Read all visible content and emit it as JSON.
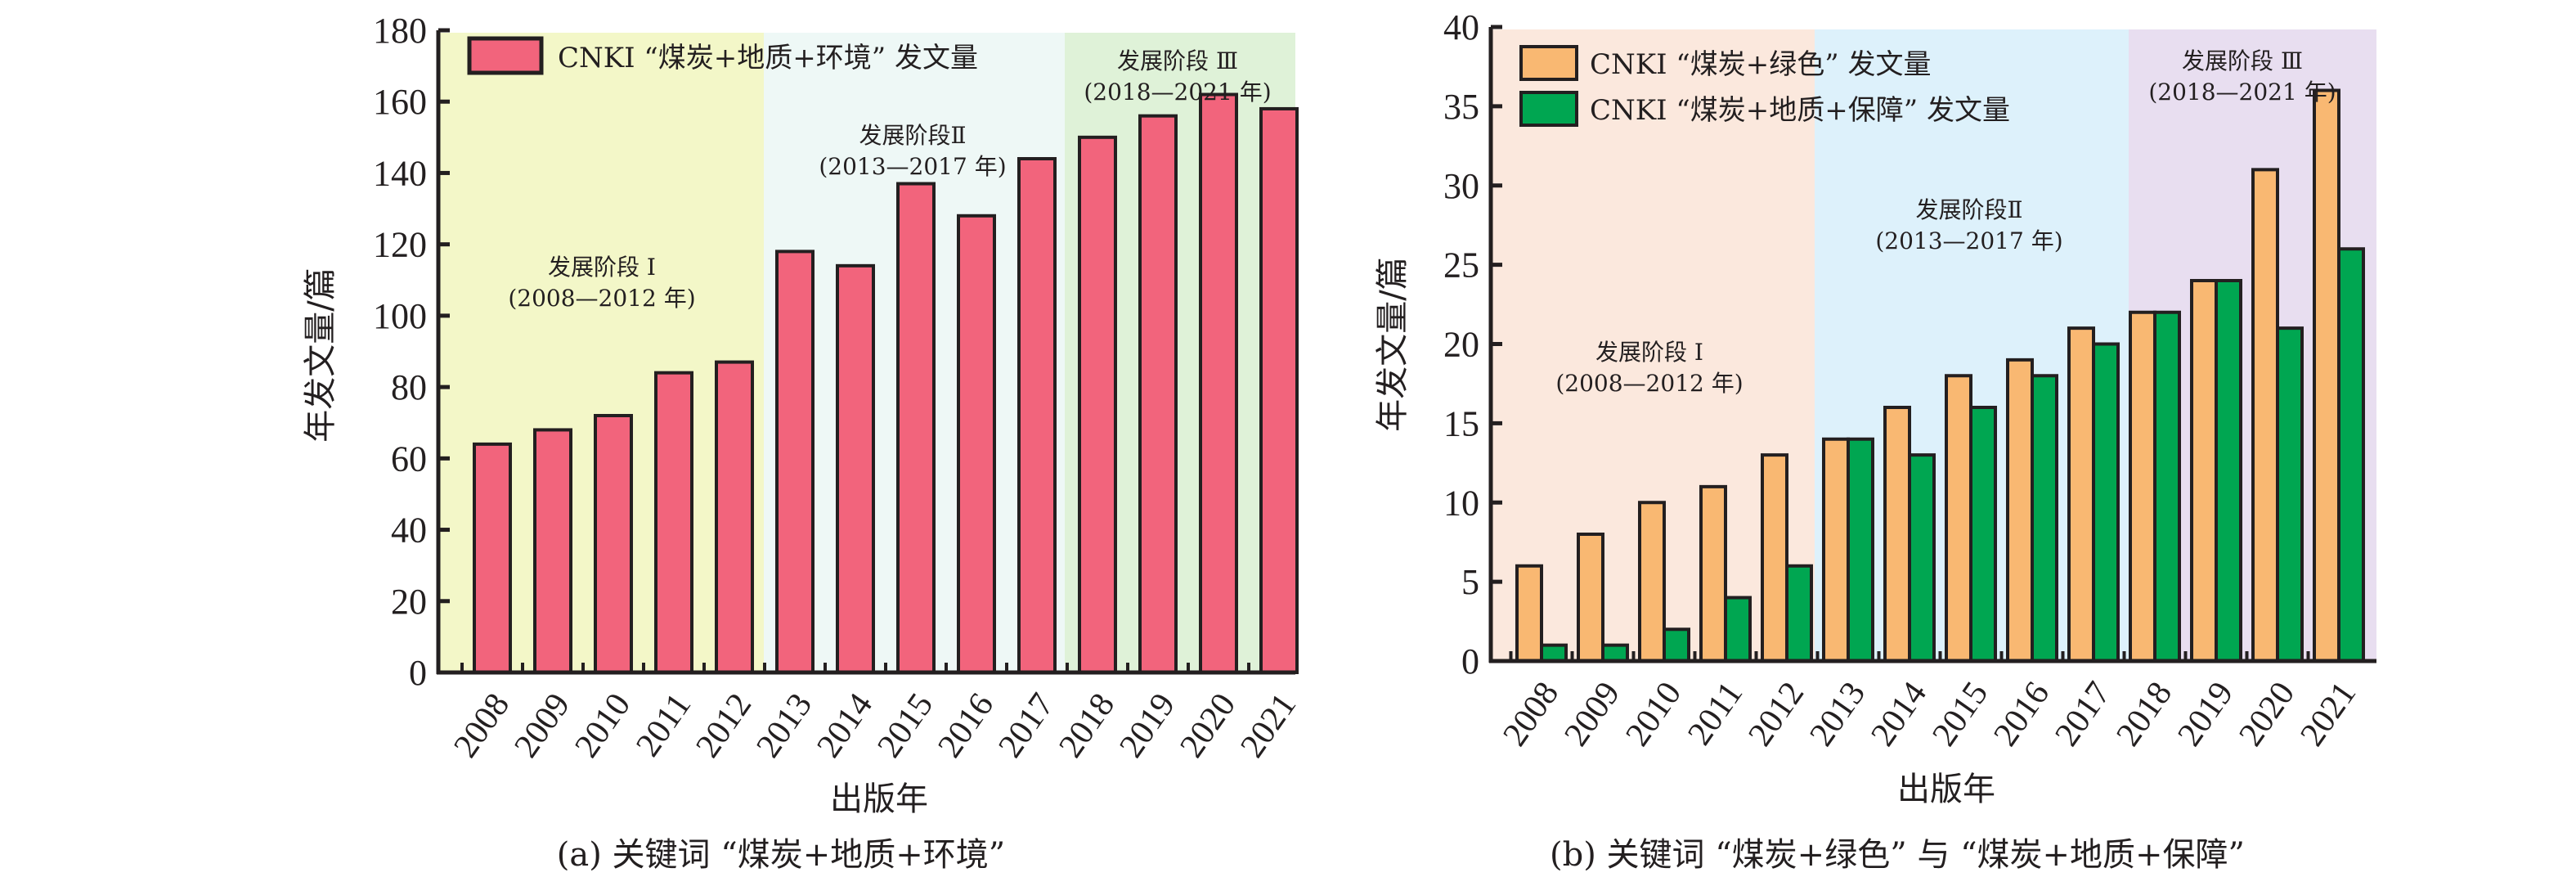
{
  "chart_data": [
    {
      "type": "bar",
      "title": "",
      "caption": "(a) 关键词 “煤炭+地质+环境”",
      "xlabel": "出版年",
      "ylabel": "年发文量/篇",
      "ylim": [
        0,
        180
      ],
      "yticks": [
        0,
        20,
        40,
        60,
        80,
        100,
        120,
        140,
        160,
        180
      ],
      "categories": [
        "2008",
        "2009",
        "2010",
        "2011",
        "2012",
        "2013",
        "2014",
        "2015",
        "2016",
        "2017",
        "2018",
        "2019",
        "2020",
        "2021"
      ],
      "series": [
        {
          "name": "CNKI “煤炭+地质+环境” 发文量",
          "color": "#f2647c",
          "values": [
            64,
            68,
            72,
            84,
            87,
            118,
            114,
            137,
            128,
            144,
            150,
            156,
            162,
            158
          ]
        }
      ],
      "legend_position": "top-left",
      "stages": [
        {
          "name": "发展阶段 Ⅰ",
          "range": "(2008—2012 年)",
          "from": "2008",
          "to": "2012",
          "color": "#f3f7c8"
        },
        {
          "name": "发展阶段Ⅱ",
          "range": "(2013—2017 年)",
          "from": "2013",
          "to": "2017",
          "color": "#eef8f6"
        },
        {
          "name": "发展阶段 Ⅲ",
          "range": "(2018—2021 年)",
          "from": "2018",
          "to": "2021",
          "color": "#dff2d8"
        }
      ],
      "grid": false
    },
    {
      "type": "bar",
      "title": "",
      "caption": "(b) 关键词 “煤炭+绿色” 与 “煤炭+地质+保障”",
      "xlabel": "出版年",
      "ylabel": "年发文量/篇",
      "ylim": [
        0,
        40
      ],
      "yticks": [
        0,
        5,
        10,
        15,
        20,
        25,
        30,
        35,
        40
      ],
      "categories": [
        "2008",
        "2009",
        "2010",
        "2011",
        "2012",
        "2013",
        "2014",
        "2015",
        "2016",
        "2017",
        "2018",
        "2019",
        "2020",
        "2021"
      ],
      "series": [
        {
          "name": "CNKI “煤炭+绿色” 发文量",
          "color": "#f9b872",
          "values": [
            6,
            8,
            10,
            11,
            13,
            14,
            16,
            18,
            19,
            21,
            22,
            24,
            31,
            36
          ]
        },
        {
          "name": "CNKI “煤炭+地质+保障” 发文量",
          "color": "#00a651",
          "values": [
            1,
            1,
            2,
            4,
            6,
            14,
            13,
            16,
            18,
            20,
            22,
            24,
            21,
            26
          ]
        }
      ],
      "legend_position": "top-left",
      "stages": [
        {
          "name": "发展阶段 Ⅰ",
          "range": "(2008—2012 年)",
          "from": "2008",
          "to": "2012",
          "color": "#fbe8dd"
        },
        {
          "name": "发展阶段Ⅱ",
          "range": "(2013—2017 年)",
          "from": "2013",
          "to": "2017",
          "color": "#ddf1fb"
        },
        {
          "name": "发展阶段 Ⅲ",
          "range": "(2018—2021 年)",
          "from": "2018",
          "to": "2021",
          "color": "#e8def0"
        }
      ],
      "grid": false
    }
  ]
}
